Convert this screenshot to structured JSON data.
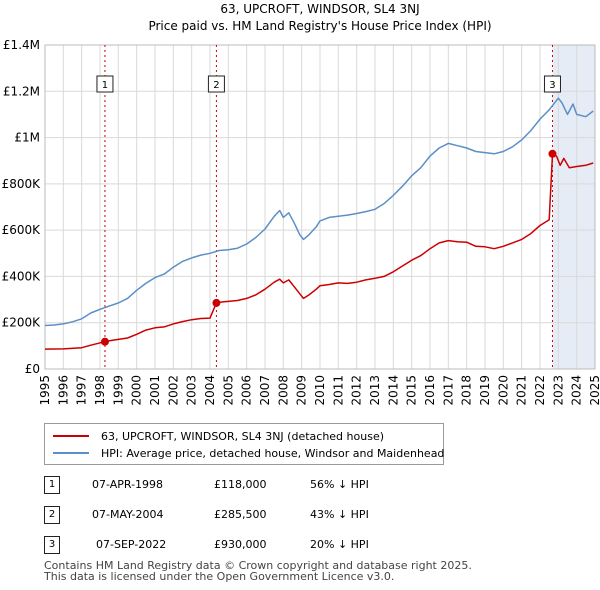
{
  "chart_data": {
    "type": "line",
    "title": "63, UPCROFT, WINDSOR, SL4 3NJ",
    "subtitle": "Price paid vs. HM Land Registry's House Price Index (HPI)",
    "xlim": [
      1995,
      2025
    ],
    "ylim": [
      0,
      1400000
    ],
    "x_ticks": [
      "1995",
      "1996",
      "1997",
      "1998",
      "1999",
      "2000",
      "2001",
      "2002",
      "2003",
      "2004",
      "2005",
      "2006",
      "2007",
      "2008",
      "2009",
      "2010",
      "2011",
      "2012",
      "2013",
      "2014",
      "2015",
      "2016",
      "2017",
      "2018",
      "2019",
      "2020",
      "2021",
      "2022",
      "2023",
      "2024",
      "2025"
    ],
    "y_ticks": [
      {
        "value": 0,
        "label": "£0"
      },
      {
        "value": 200000,
        "label": "£200K"
      },
      {
        "value": 400000,
        "label": "£400K"
      },
      {
        "value": 600000,
        "label": "£600K"
      },
      {
        "value": 800000,
        "label": "£800K"
      },
      {
        "value": 1000000,
        "label": "£1M"
      },
      {
        "value": 1200000,
        "label": "£1.2M"
      },
      {
        "value": 1400000,
        "label": "£1.4M"
      }
    ],
    "series": [
      {
        "name": "63, UPCROFT, WINDSOR, SL4 3NJ (detached house)",
        "color": "#cc0000",
        "points": [
          [
            1995.0,
            86000
          ],
          [
            1996.0,
            87000
          ],
          [
            1997.0,
            92000
          ],
          [
            1997.5,
            103000
          ],
          [
            1998.27,
            118000
          ],
          [
            1998.6,
            123000
          ],
          [
            1999.0,
            128000
          ],
          [
            1999.5,
            134000
          ],
          [
            2000.0,
            150000
          ],
          [
            2000.5,
            168000
          ],
          [
            2001.0,
            178000
          ],
          [
            2001.5,
            182000
          ],
          [
            2002.0,
            195000
          ],
          [
            2002.5,
            205000
          ],
          [
            2003.0,
            213000
          ],
          [
            2003.5,
            218000
          ],
          [
            2004.0,
            220000
          ],
          [
            2004.35,
            285500
          ],
          [
            2004.7,
            290000
          ],
          [
            2005.0,
            292000
          ],
          [
            2005.5,
            296000
          ],
          [
            2006.0,
            305000
          ],
          [
            2006.5,
            320000
          ],
          [
            2007.0,
            345000
          ],
          [
            2007.5,
            375000
          ],
          [
            2007.8,
            388000
          ],
          [
            2008.0,
            372000
          ],
          [
            2008.3,
            385000
          ],
          [
            2008.6,
            355000
          ],
          [
            2008.9,
            325000
          ],
          [
            2009.1,
            305000
          ],
          [
            2009.4,
            320000
          ],
          [
            2009.8,
            345000
          ],
          [
            2010.0,
            360000
          ],
          [
            2010.5,
            365000
          ],
          [
            2011.0,
            372000
          ],
          [
            2011.5,
            370000
          ],
          [
            2012.0,
            375000
          ],
          [
            2012.5,
            385000
          ],
          [
            2013.0,
            392000
          ],
          [
            2013.5,
            400000
          ],
          [
            2014.0,
            420000
          ],
          [
            2014.5,
            445000
          ],
          [
            2015.0,
            470000
          ],
          [
            2015.5,
            490000
          ],
          [
            2016.0,
            520000
          ],
          [
            2016.5,
            545000
          ],
          [
            2017.0,
            555000
          ],
          [
            2017.5,
            550000
          ],
          [
            2018.0,
            548000
          ],
          [
            2018.5,
            530000
          ],
          [
            2019.0,
            528000
          ],
          [
            2019.5,
            520000
          ],
          [
            2020.0,
            530000
          ],
          [
            2020.5,
            545000
          ],
          [
            2021.0,
            560000
          ],
          [
            2021.5,
            585000
          ],
          [
            2022.0,
            620000
          ],
          [
            2022.5,
            645000
          ],
          [
            2022.68,
            930000
          ],
          [
            2022.9,
            920000
          ],
          [
            2023.1,
            880000
          ],
          [
            2023.3,
            910000
          ],
          [
            2023.6,
            870000
          ],
          [
            2024.0,
            875000
          ],
          [
            2024.5,
            880000
          ],
          [
            2024.9,
            890000
          ]
        ]
      },
      {
        "name": "HPI: Average price, detached house, Windsor and Maidenhead",
        "color": "#5b8fc7",
        "points": [
          [
            1995.0,
            188000
          ],
          [
            1995.5,
            190000
          ],
          [
            1996.0,
            195000
          ],
          [
            1996.5,
            204000
          ],
          [
            1997.0,
            217000
          ],
          [
            1997.5,
            242000
          ],
          [
            1998.0,
            258000
          ],
          [
            1998.5,
            272000
          ],
          [
            1999.0,
            285000
          ],
          [
            1999.5,
            305000
          ],
          [
            2000.0,
            340000
          ],
          [
            2000.5,
            370000
          ],
          [
            2001.0,
            395000
          ],
          [
            2001.5,
            410000
          ],
          [
            2002.0,
            440000
          ],
          [
            2002.5,
            465000
          ],
          [
            2003.0,
            480000
          ],
          [
            2003.5,
            492000
          ],
          [
            2004.0,
            500000
          ],
          [
            2004.5,
            512000
          ],
          [
            2005.0,
            515000
          ],
          [
            2005.5,
            522000
          ],
          [
            2006.0,
            540000
          ],
          [
            2006.5,
            568000
          ],
          [
            2007.0,
            605000
          ],
          [
            2007.5,
            660000
          ],
          [
            2007.8,
            685000
          ],
          [
            2008.0,
            655000
          ],
          [
            2008.3,
            675000
          ],
          [
            2008.6,
            630000
          ],
          [
            2008.9,
            580000
          ],
          [
            2009.1,
            560000
          ],
          [
            2009.4,
            580000
          ],
          [
            2009.8,
            615000
          ],
          [
            2010.0,
            640000
          ],
          [
            2010.5,
            655000
          ],
          [
            2011.0,
            660000
          ],
          [
            2011.5,
            665000
          ],
          [
            2012.0,
            672000
          ],
          [
            2012.5,
            680000
          ],
          [
            2013.0,
            690000
          ],
          [
            2013.5,
            715000
          ],
          [
            2014.0,
            750000
          ],
          [
            2014.5,
            790000
          ],
          [
            2015.0,
            835000
          ],
          [
            2015.5,
            870000
          ],
          [
            2016.0,
            920000
          ],
          [
            2016.5,
            955000
          ],
          [
            2017.0,
            975000
          ],
          [
            2017.5,
            965000
          ],
          [
            2018.0,
            955000
          ],
          [
            2018.5,
            940000
          ],
          [
            2019.0,
            935000
          ],
          [
            2019.5,
            930000
          ],
          [
            2020.0,
            940000
          ],
          [
            2020.5,
            960000
          ],
          [
            2021.0,
            990000
          ],
          [
            2021.5,
            1030000
          ],
          [
            2022.0,
            1080000
          ],
          [
            2022.5,
            1120000
          ],
          [
            2022.7,
            1140000
          ],
          [
            2023.0,
            1170000
          ],
          [
            2023.2,
            1150000
          ],
          [
            2023.5,
            1100000
          ],
          [
            2023.8,
            1145000
          ],
          [
            2024.0,
            1100000
          ],
          [
            2024.5,
            1090000
          ],
          [
            2024.9,
            1115000
          ]
        ]
      }
    ],
    "sales": [
      {
        "label": "1",
        "x": 1998.27,
        "price": 118000,
        "date": "07-APR-1998",
        "price_text": "£118,000",
        "hpi_text": "56% ↓ HPI"
      },
      {
        "label": "2",
        "x": 2004.35,
        "price": 285500,
        "date": "07-MAY-2004",
        "price_text": "£285,500",
        "hpi_text": "43% ↓ HPI"
      },
      {
        "label": "3",
        "x": 2022.68,
        "price": 930000,
        "date": "07-SEP-2022",
        "price_text": "£930,000",
        "hpi_text": "20% ↓ HPI"
      }
    ],
    "legend_position": "below",
    "grid": true
  },
  "footer": {
    "line1": "Contains HM Land Registry data © Crown copyright and database right 2025.",
    "line2": "This data is licensed under the Open Government Licence v3.0."
  },
  "colors": {
    "red": "#cc0000",
    "blue": "#5b8fc7",
    "grid": "#d9d9d9",
    "highlight": "#e6ecf5"
  }
}
